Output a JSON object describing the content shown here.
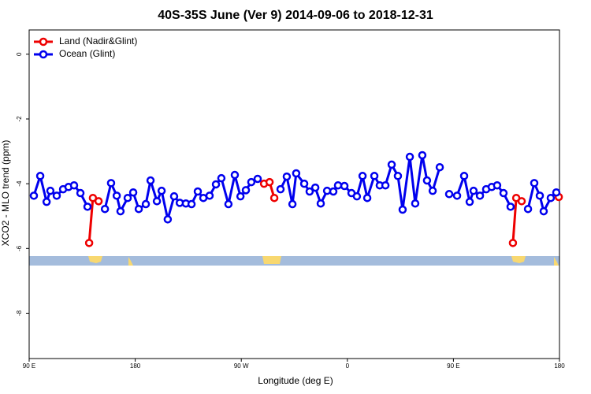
{
  "chart_data": {
    "type": "line",
    "title": "40S-35S June (Ver 9)   2014-09-06 to 2018-12-31",
    "x_label": "Longitude (deg E)",
    "y_label": "XCO2 - MLO trend (ppm)",
    "xlim": [
      90,
      540
    ],
    "ylim": [
      -9.4,
      0.75
    ],
    "xticks": [
      {
        "value": 90,
        "label": "90 E"
      },
      180,
      {
        "value": 270,
        "label": "90 W"
      },
      {
        "value": 360,
        "label": "0"
      },
      {
        "value": 450,
        "label": "90 E"
      },
      180
    ],
    "yticks": [
      0,
      -2,
      -4,
      -6,
      -8
    ],
    "legend": "upper left",
    "series": [
      {
        "name": "Land (Nadir&Glint)",
        "color": "#ee0000",
        "x": [
          140.9,
          144.1,
          148.9,
          null,
          289.3,
          294.0,
          298.0,
          null,
          500.5,
          503.3,
          507.9,
          null,
          539.4
        ],
        "values": [
          -5.83,
          -4.44,
          -4.54,
          null,
          -4.0,
          -3.95,
          -4.44,
          null,
          -5.83,
          -4.44,
          -4.54,
          null,
          -4.41
        ]
      },
      {
        "name": "Ocean (Glint)",
        "color": "#0000ee",
        "x": [
          94.0,
          99.4,
          104.8,
          108.0,
          113.4,
          118.8,
          123.4,
          128.1,
          133.5,
          139.5,
          null,
          154.3,
          159.5,
          164.3,
          167.5,
          173.6,
          178.3,
          183.0,
          189.0,
          193.0,
          198.4,
          202.4,
          207.6,
          213.0,
          217.8,
          223.0,
          227.8,
          233.1,
          237.8,
          243.1,
          248.5,
          253.1,
          259.1,
          264.5,
          269.3,
          273.9,
          278.5,
          283.9,
          null,
          303.3,
          308.6,
          313.4,
          316.6,
          323.4,
          328.0,
          332.8,
          337.4,
          342.8,
          348.1,
          352.1,
          357.5,
          363.5,
          368.1,
          372.9,
          376.9,
          382.9,
          387.5,
          392.3,
          397.6,
          402.9,
          406.9,
          413.0,
          417.6,
          423.6,
          427.6,
          432.4,
          438.4,
          null,
          446.4,
          453.1,
          459.1,
          463.8,
          467.1,
          472.5,
          477.8,
          482.5,
          487.1,
          492.5,
          498.5,
          null,
          513.3,
          518.6,
          523.3,
          526.6,
          532.6,
          537.3
        ],
        "values": [
          -4.37,
          -3.76,
          -4.56,
          -4.22,
          -4.37,
          -4.17,
          -4.1,
          -4.05,
          -4.29,
          -4.71,
          null,
          -4.78,
          -3.98,
          -4.37,
          -4.85,
          -4.44,
          -4.27,
          -4.78,
          -4.63,
          -3.9,
          -4.54,
          -4.22,
          -5.1,
          -4.39,
          -4.59,
          -4.61,
          -4.63,
          -4.24,
          -4.44,
          -4.37,
          -4.02,
          -3.83,
          -4.63,
          -3.73,
          -4.39,
          -4.2,
          -3.95,
          -3.85,
          null,
          -4.17,
          -3.78,
          -4.63,
          -3.68,
          -4.0,
          -4.24,
          -4.12,
          -4.61,
          -4.22,
          -4.24,
          -4.05,
          -4.07,
          -4.29,
          -4.39,
          -3.76,
          -4.44,
          -3.76,
          -4.05,
          -4.05,
          -3.41,
          -3.76,
          -4.8,
          -3.17,
          -4.61,
          -3.12,
          -3.9,
          -4.22,
          -3.49,
          null,
          -4.32,
          -4.37,
          -3.76,
          -4.56,
          -4.22,
          -4.37,
          -4.17,
          -4.1,
          -4.05,
          -4.29,
          -4.71,
          null,
          -4.78,
          -3.98,
          -4.37,
          -4.85,
          -4.44,
          -4.27
        ]
      }
    ]
  }
}
